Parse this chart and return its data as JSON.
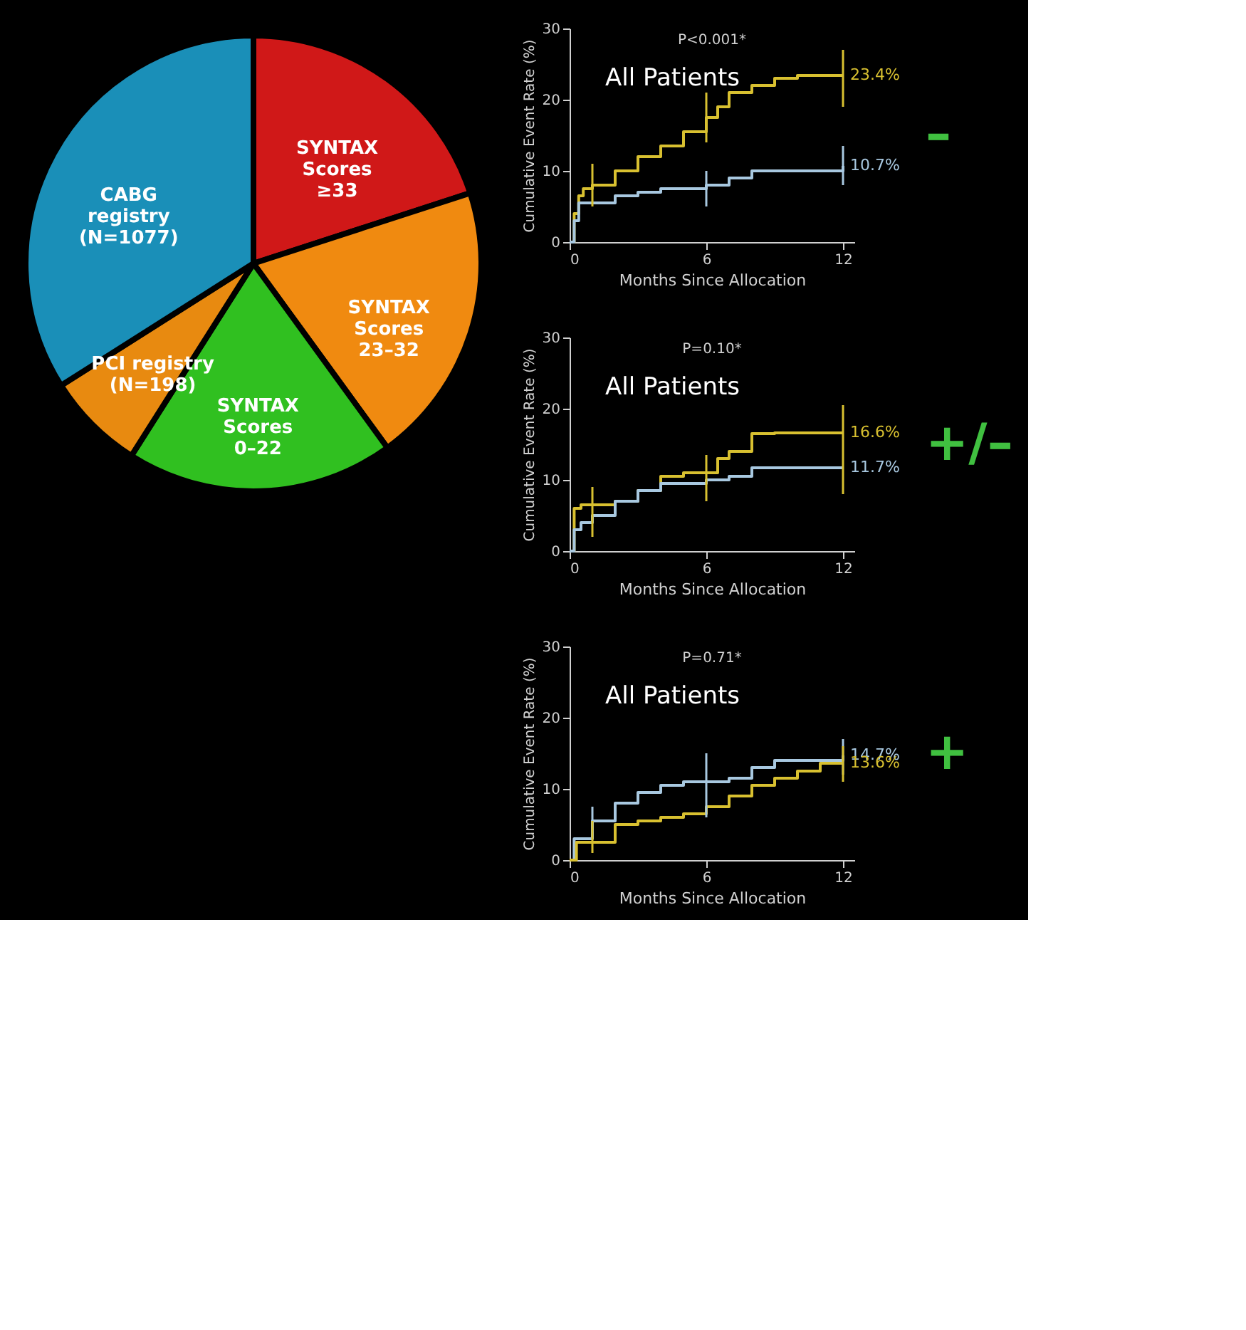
{
  "chart_data": [
    {
      "type": "pie",
      "categories": [
        "SYNTAX\nScores\n≥33",
        "SYNTAX\nScores\n23–32",
        "SYNTAX\nScores\n0–22",
        "PCI registry\n(N=198)",
        "CABG\nregistry\n(N=1077)"
      ],
      "values": [
        20,
        20,
        19,
        7,
        34
      ],
      "colors": [
        "#d01818",
        "#f08a10",
        "#30c020",
        "#e88a10",
        "#1a8fb8"
      ],
      "legend": false
    },
    {
      "type": "step",
      "xlabel": "Months Since Allocation",
      "ylabel": "Cumulative Event Rate (%)",
      "xlim": [
        0,
        12.5
      ],
      "xticks": [
        0,
        6,
        12
      ],
      "ylim": [
        0,
        30
      ],
      "yticks": [
        0,
        10,
        20,
        30
      ],
      "grid": false,
      "legend": false,
      "marker": "none",
      "annotations": [
        "P<0.001*",
        "All Patients",
        "–"
      ],
      "series": [
        {
          "color": "#d8c030",
          "x": [
            0,
            0.2,
            0.4,
            0.6,
            1,
            2,
            3,
            4,
            5,
            6,
            6.5,
            7,
            8,
            9,
            10,
            12
          ],
          "values": [
            0,
            4,
            6.5,
            7.5,
            8,
            10,
            12,
            13.5,
            15.5,
            17.5,
            19,
            21,
            22,
            23,
            23.4,
            23.4
          ],
          "errors": [
            null,
            null,
            null,
            null,
            [
              5,
              11
            ],
            null,
            null,
            null,
            null,
            [
              14,
              21
            ],
            null,
            null,
            null,
            null,
            null,
            [
              19,
              27
            ]
          ],
          "value_labels": [
            null,
            null,
            null,
            null,
            null,
            null,
            null,
            null,
            null,
            null,
            null,
            null,
            null,
            null,
            null,
            "23.4%"
          ]
        },
        {
          "color": "#a8c8e0",
          "x": [
            0,
            0.2,
            0.4,
            1,
            2,
            3,
            4,
            6,
            7,
            8,
            10,
            12
          ],
          "values": [
            0,
            3,
            5.5,
            5.5,
            6.5,
            7,
            7.5,
            8,
            9,
            10,
            10,
            10.7
          ],
          "errors": [
            null,
            null,
            null,
            null,
            null,
            null,
            null,
            [
              5,
              10
            ],
            null,
            null,
            null,
            [
              8,
              13.5
            ]
          ],
          "value_labels": [
            null,
            null,
            null,
            null,
            null,
            null,
            null,
            null,
            null,
            null,
            null,
            "10.7%"
          ]
        }
      ]
    },
    {
      "type": "step",
      "xlabel": "Months Since Allocation",
      "ylabel": "Cumulative Event Rate (%)",
      "xlim": [
        0,
        12.5
      ],
      "xticks": [
        0,
        6,
        12
      ],
      "ylim": [
        0,
        30
      ],
      "yticks": [
        0,
        10,
        20,
        30
      ],
      "grid": false,
      "legend": false,
      "marker": "none",
      "annotations": [
        "P=0.10*",
        "All Patients",
        "+/–"
      ],
      "series": [
        {
          "color": "#d8c030",
          "x": [
            0,
            0.2,
            0.5,
            1,
            2,
            3,
            4,
            5,
            6,
            6.5,
            7,
            8,
            9,
            12
          ],
          "values": [
            0,
            6,
            6.5,
            6.5,
            7,
            8.5,
            10.5,
            11,
            11,
            13,
            14,
            16.5,
            16.6,
            16.6
          ],
          "errors": [
            null,
            null,
            null,
            [
              2,
              9
            ],
            null,
            null,
            null,
            null,
            [
              7,
              13.5
            ],
            null,
            null,
            null,
            null,
            [
              8,
              20.5
            ]
          ],
          "value_labels": [
            null,
            null,
            null,
            null,
            null,
            null,
            null,
            null,
            null,
            null,
            null,
            null,
            null,
            "16.6%"
          ]
        },
        {
          "color": "#a8c8e0",
          "x": [
            0,
            0.2,
            0.5,
            1,
            2,
            3,
            4,
            5,
            6,
            7,
            8,
            12
          ],
          "values": [
            0,
            3,
            4,
            5,
            7,
            8.5,
            9.5,
            9.5,
            10,
            10.5,
            11.7,
            11.7
          ],
          "errors": [
            null,
            null,
            null,
            null,
            null,
            null,
            null,
            null,
            null,
            null,
            null,
            null
          ],
          "value_labels": [
            null,
            null,
            null,
            null,
            null,
            null,
            null,
            null,
            null,
            null,
            null,
            "11.7%"
          ]
        }
      ]
    },
    {
      "type": "step",
      "xlabel": "Months Since Allocation",
      "ylabel": "Cumulative Event Rate (%)",
      "xlim": [
        0,
        12.5
      ],
      "xticks": [
        0,
        6,
        12
      ],
      "ylim": [
        0,
        30
      ],
      "yticks": [
        0,
        10,
        20,
        30
      ],
      "grid": false,
      "legend": false,
      "marker": "none",
      "annotations": [
        "P=0.71*",
        "All Patients",
        "+"
      ],
      "series": [
        {
          "color": "#a8c8e0",
          "x": [
            0,
            0.2,
            1,
            2,
            3,
            4,
            5,
            6,
            7,
            8,
            9,
            11,
            12
          ],
          "values": [
            0,
            3,
            5.5,
            8,
            9.5,
            10.5,
            11,
            11,
            11.5,
            13,
            14,
            14,
            14.7
          ],
          "errors": [
            null,
            null,
            [
              4,
              7.5
            ],
            null,
            null,
            null,
            null,
            [
              6,
              15
            ],
            null,
            null,
            null,
            null,
            [
              12,
              17
            ]
          ],
          "value_labels": [
            null,
            null,
            null,
            null,
            null,
            null,
            null,
            null,
            null,
            null,
            null,
            null,
            "14.7%"
          ]
        },
        {
          "color": "#d8c030",
          "x": [
            0,
            0.3,
            1,
            2,
            3,
            4,
            5,
            6,
            7,
            8,
            9,
            10,
            11,
            12
          ],
          "values": [
            0,
            2.5,
            2.5,
            5,
            5.5,
            6,
            6.5,
            7.5,
            9,
            10.5,
            11.5,
            12.5,
            13.6,
            13.6
          ],
          "errors": [
            null,
            null,
            [
              1,
              5.5
            ],
            null,
            null,
            null,
            null,
            null,
            null,
            null,
            null,
            null,
            null,
            [
              11,
              16
            ]
          ],
          "value_labels": [
            null,
            null,
            null,
            null,
            null,
            null,
            null,
            null,
            null,
            null,
            null,
            null,
            null,
            "13.6%"
          ]
        }
      ]
    }
  ]
}
